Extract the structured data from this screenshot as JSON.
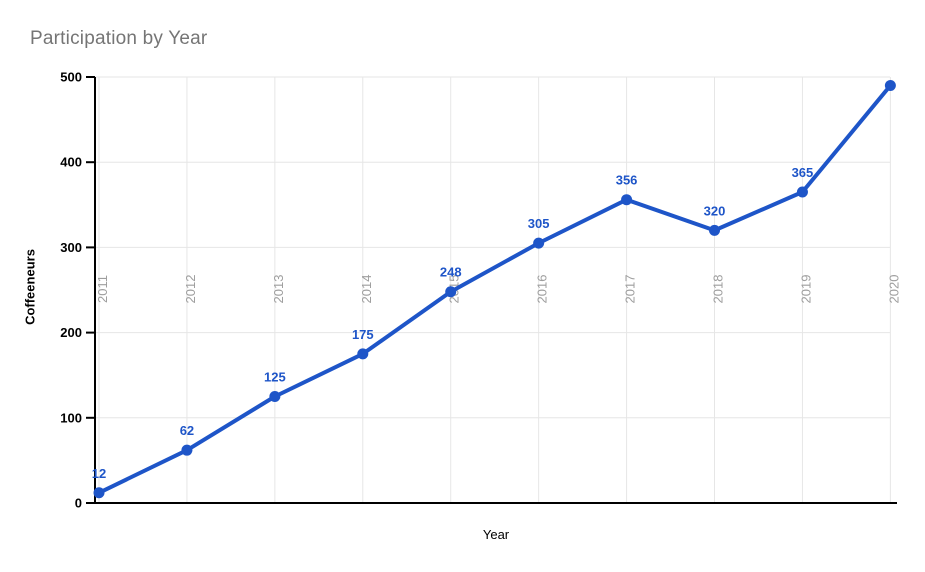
{
  "chart_data": {
    "type": "line",
    "title": "Participation by Year",
    "xlabel": "Year",
    "ylabel": "Coffeeneurs",
    "categories": [
      "2011",
      "2012",
      "2013",
      "2014",
      "2015",
      "2016",
      "2017",
      "2018",
      "2019",
      "2020"
    ],
    "values": [
      12,
      62,
      125,
      175,
      248,
      305,
      356,
      320,
      365,
      490
    ],
    "point_labels": [
      "12",
      "62",
      "125",
      "175",
      "248",
      "305",
      "356",
      "320",
      "365",
      ""
    ],
    "yticks": [
      0,
      100,
      200,
      300,
      400,
      500
    ],
    "ylim": [
      0,
      500
    ],
    "grid": true,
    "legend_position": "none"
  },
  "colors": {
    "series": "#1e55c8",
    "data_label": "#1e55c8",
    "grid": "#e6e6e6",
    "axis": "#000000",
    "title": "#757575",
    "year_label": "#9e9e9e",
    "ytick_label": "#000000"
  }
}
